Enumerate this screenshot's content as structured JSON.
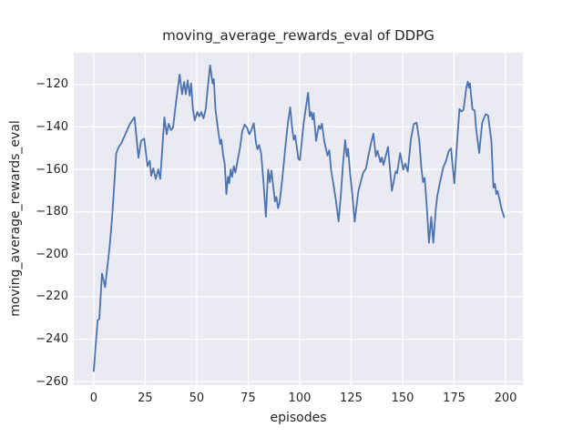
{
  "chart_data": {
    "type": "line",
    "title": "moving_average_rewards_eval of DDPG",
    "xlabel": "episodes",
    "ylabel": "moving_average_rewards_eval",
    "x_ticks": [
      0,
      25,
      50,
      75,
      100,
      125,
      150,
      175,
      200
    ],
    "y_ticks": [
      -120,
      -140,
      -160,
      -180,
      -200,
      -220,
      -240,
      -260
    ],
    "xlim": [
      -9.7,
      208.4
    ],
    "ylim": [
      -261.6,
      -105.1
    ],
    "grid": true,
    "legend_position": "none",
    "line_color": "#4C72B0",
    "plot_background": "#EAEAF2",
    "grid_color": "#FFFFFF",
    "figure_background": "#FFFFFF",
    "text_color": "#262626",
    "series": [
      {
        "name": "moving_average_rewards_eval",
        "x": [
          0,
          1,
          1.9,
          2.7,
          4,
          5.5,
          6.6,
          7.7,
          8.9,
          9.9,
          10.9,
          12.1,
          13.5,
          15.3,
          17.6,
          19.8,
          20.9,
          21.7,
          23,
          24.5,
          26.1,
          27.2,
          27.9,
          28.9,
          30.1,
          31.3,
          32.3,
          34.3,
          35.4,
          36.4,
          37.5,
          38.5,
          40,
          41.7,
          42.9,
          43.9,
          44.7,
          45.6,
          46.6,
          47.3,
          48.1,
          49,
          50.3,
          51.2,
          52.2,
          53.3,
          54.4,
          55.3,
          56.5,
          57.7,
          58.3,
          59.1,
          60.6,
          61.4,
          62,
          62.8,
          63.6,
          64.4,
          65.2,
          65.8,
          66.5,
          67.2,
          68,
          68.8,
          70,
          71,
          72.1,
          73.3,
          74.5,
          75.5,
          76.5,
          77.7,
          78.8,
          79.5,
          80.3,
          81.3,
          82.5,
          83.6,
          84.7,
          85.5,
          86.3,
          88,
          88.7,
          89.5,
          90.2,
          91.5,
          93,
          94.3,
          95.4,
          96.4,
          97.1,
          97.8,
          99.4,
          100.1,
          101.9,
          103,
          104.1,
          104.9,
          105.6,
          106.2,
          106.8,
          108,
          109.3,
          110,
          110.8,
          112,
          113.5,
          114.4,
          115.3,
          116.4,
          117.5,
          118.9,
          120,
          121,
          122.1,
          122.9,
          123.5,
          124.5,
          125.6,
          126.7,
          128.5,
          130,
          130.8,
          132.2,
          133.5,
          134.7,
          135.8,
          137,
          137.8,
          139.2,
          139.9,
          140.7,
          142,
          142.9,
          144.8,
          146.6,
          147.3,
          148.8,
          150.3,
          151.3,
          152.5,
          154,
          155.4,
          156.8,
          158.1,
          159.1,
          159.9,
          160.7,
          161.7,
          162.8,
          163.9,
          164.9,
          166.1,
          166.8,
          168,
          169.8,
          171.2,
          172.3,
          173.5,
          175.1,
          176.5,
          177.6,
          178.6,
          179.6,
          181,
          181.7,
          182.2,
          182.7,
          183.9,
          185,
          185.7,
          187.2,
          188.6,
          189.5,
          190.4,
          191.5,
          193.1,
          194.1,
          194.8,
          195.5,
          196.1,
          196.8,
          198,
          199.3
        ],
        "y": [
          -255,
          -242,
          -231,
          -230.5,
          -209,
          -215.5,
          -206,
          -196.5,
          -183,
          -168,
          -152.5,
          -149.5,
          -147.5,
          -143.5,
          -138.5,
          -135.4,
          -146.5,
          -154.5,
          -146.5,
          -145.5,
          -158.5,
          -156,
          -163,
          -159.5,
          -164.5,
          -160,
          -164.5,
          -135.5,
          -143.5,
          -138.5,
          -141.5,
          -140.3,
          -128,
          -115.3,
          -124.6,
          -118.8,
          -124.6,
          -118.1,
          -125.3,
          -119.5,
          -131,
          -137,
          -133,
          -135,
          -133,
          -136,
          -131.5,
          -122,
          -111,
          -119.5,
          -117.5,
          -131.7,
          -143.1,
          -148.1,
          -146,
          -153.1,
          -157.5,
          -171.6,
          -163.5,
          -166.5,
          -160,
          -163.5,
          -158.5,
          -161.5,
          -155,
          -150,
          -142,
          -138.9,
          -140.5,
          -143.5,
          -141.6,
          -138.3,
          -147.5,
          -150.5,
          -148.5,
          -152.5,
          -167,
          -182.3,
          -160.1,
          -166,
          -160.5,
          -175.1,
          -173,
          -178.3,
          -176,
          -165,
          -150,
          -138,
          -130.8,
          -141,
          -146.1,
          -144,
          -155.1,
          -155.6,
          -138.7,
          -131,
          -123.9,
          -135,
          -133,
          -136.5,
          -133.5,
          -146.6,
          -139.4,
          -141,
          -138.5,
          -147,
          -153.5,
          -151,
          -160.5,
          -167,
          -174,
          -184.5,
          -172,
          -158,
          -146.2,
          -153.9,
          -150.3,
          -162,
          -172,
          -184.6,
          -170.3,
          -164.6,
          -161.7,
          -159.6,
          -153,
          -147.5,
          -143.2,
          -153.9,
          -151.2,
          -156.6,
          -154.4,
          -157.9,
          -153,
          -149.4,
          -170.1,
          -160.9,
          -161.8,
          -152.3,
          -160.1,
          -157.3,
          -161,
          -146,
          -138.7,
          -138,
          -146.6,
          -159.4,
          -166,
          -164,
          -177,
          -194.6,
          -182.4,
          -194.6,
          -178.9,
          -172.7,
          -166.7,
          -158.9,
          -155.7,
          -151.5,
          -150.1,
          -166.6,
          -146.6,
          -131.6,
          -132.8,
          -131.8,
          -121,
          -118.7,
          -121.5,
          -119.5,
          -131.6,
          -132.3,
          -140.9,
          -152.3,
          -138.3,
          -135.8,
          -134,
          -134.6,
          -146.6,
          -168.7,
          -166.8,
          -171.6,
          -170.2,
          -173,
          -178.5,
          -182.5
        ]
      }
    ]
  }
}
